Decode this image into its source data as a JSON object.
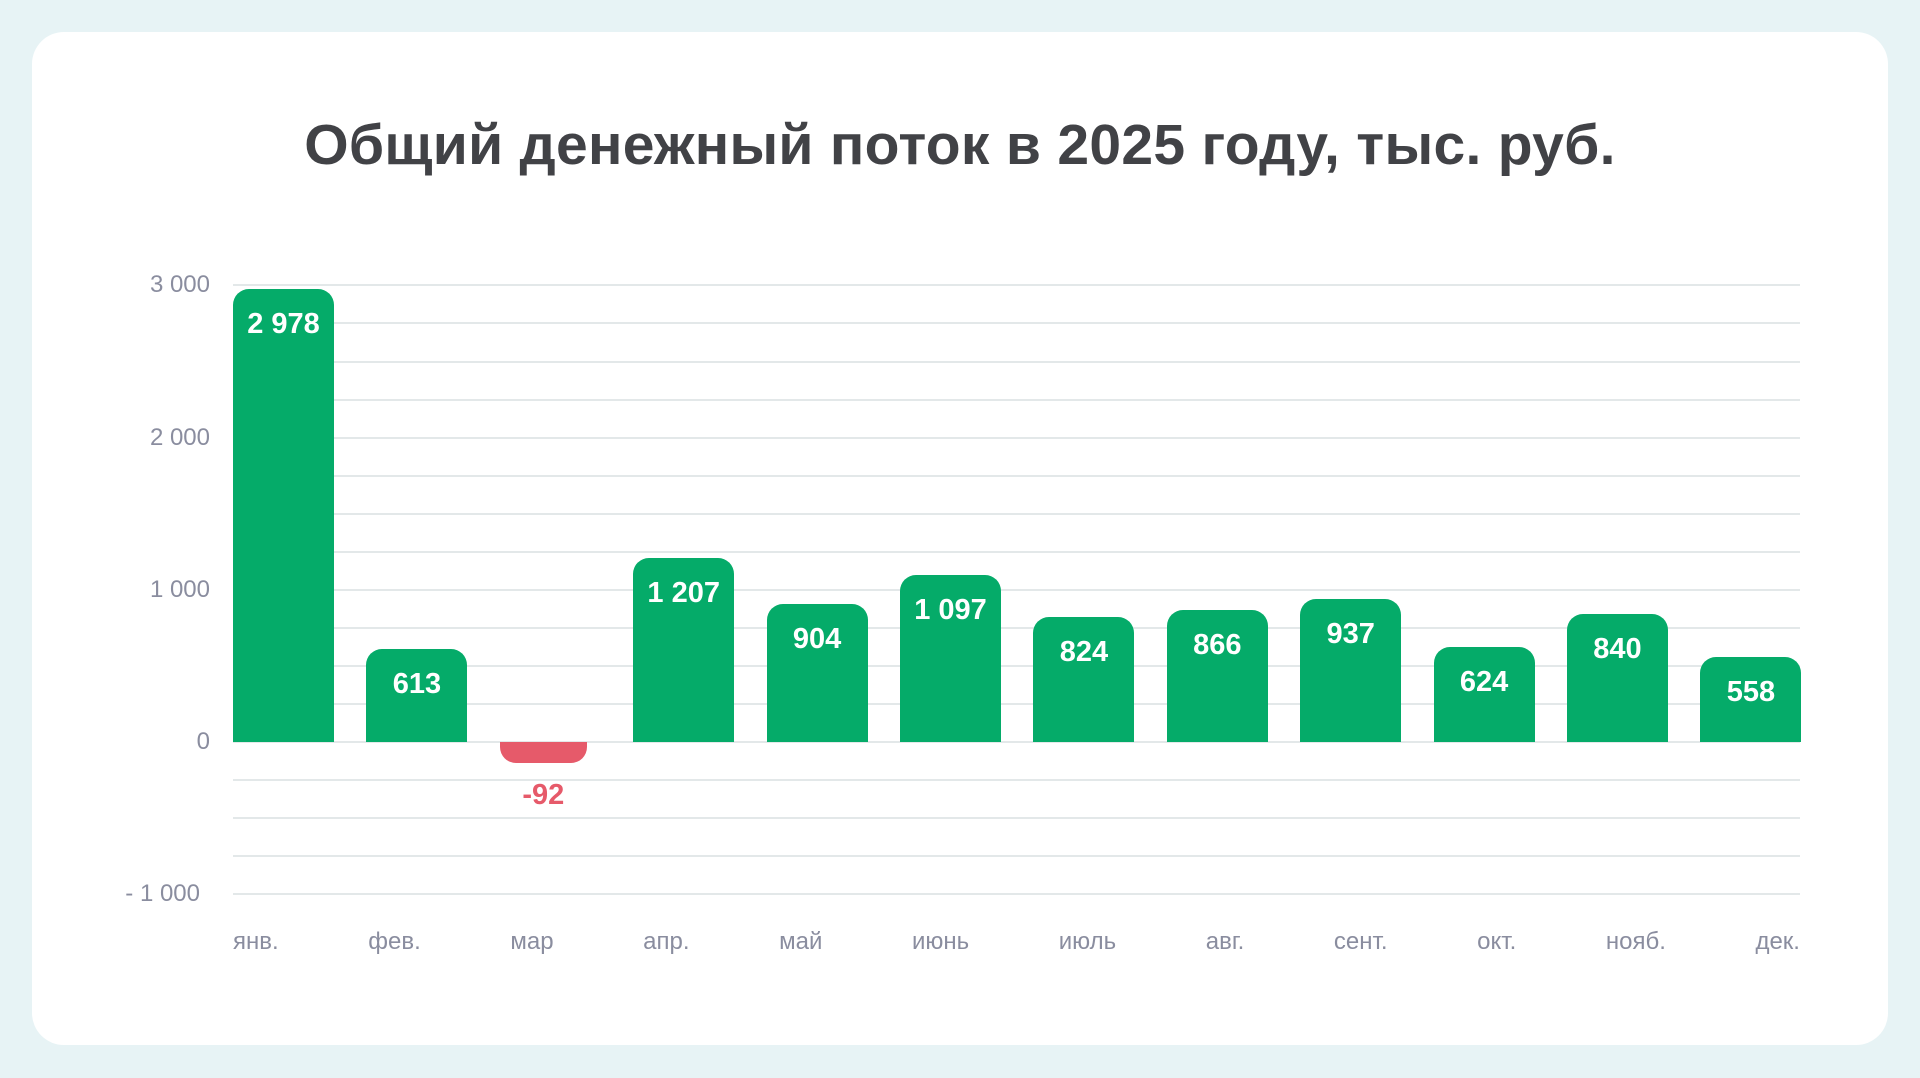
{
  "title": "Общий денежный поток в 2025 году, тыс. руб.",
  "colors": {
    "positive": "#05AB69",
    "negative": "#E65A6A",
    "title": "#414246",
    "axis_text": "#8A8D9F",
    "grid": "#E3E8E9",
    "background": "#E7F3F5",
    "card": "#FFFFFF"
  },
  "y_axis": {
    "ticks": [
      "3 000",
      "2 000",
      "1 000",
      "0",
      "- 1 000"
    ]
  },
  "x_axis": {
    "labels": [
      "янв.",
      "фев.",
      "мар",
      "апр.",
      "май",
      "июнь",
      "июль",
      "авг.",
      "сент.",
      "окт.",
      "нояб.",
      "дек."
    ]
  },
  "bars": [
    {
      "month": "янв.",
      "value": 2978,
      "label": "2 978"
    },
    {
      "month": "фев.",
      "value": 613,
      "label": "613"
    },
    {
      "month": "мар",
      "value": -92,
      "label": "-92"
    },
    {
      "month": "апр.",
      "value": 1207,
      "label": "1 207"
    },
    {
      "month": "май",
      "value": 904,
      "label": "904"
    },
    {
      "month": "июнь",
      "value": 1097,
      "label": "1 097"
    },
    {
      "month": "июль",
      "value": 824,
      "label": "824"
    },
    {
      "month": "авг.",
      "value": 866,
      "label": "866"
    },
    {
      "month": "сент.",
      "value": 937,
      "label": "937"
    },
    {
      "month": "окт.",
      "value": 624,
      "label": "624"
    },
    {
      "month": "нояб.",
      "value": 840,
      "label": "840"
    },
    {
      "month": "дек.",
      "value": 558,
      "label": "558"
    }
  ],
  "chart_data": {
    "type": "bar",
    "title": "Общий денежный поток в 2025 году, тыс. руб.",
    "categories": [
      "янв.",
      "фев.",
      "мар",
      "апр.",
      "май",
      "июнь",
      "июль",
      "авг.",
      "сент.",
      "окт.",
      "нояб.",
      "дек."
    ],
    "values": [
      2978,
      613,
      -92,
      1207,
      904,
      1097,
      824,
      866,
      937,
      624,
      840,
      558
    ],
    "data_labels": [
      "2 978",
      "613",
      "-92",
      "1 207",
      "904",
      "1 097",
      "824",
      "866",
      "937",
      "624",
      "840",
      "558"
    ],
    "xlabel": "",
    "ylabel": "",
    "ylim": [
      -1000,
      3000
    ],
    "yticks": [
      3000,
      2000,
      1000,
      0,
      -1000
    ],
    "ytick_labels": [
      "3 000",
      "2 000",
      "1 000",
      "0",
      "- 1 000"
    ],
    "grid": true,
    "grid_step": 250,
    "legend": null,
    "colors": {
      "positive": "#05AB69",
      "negative": "#E65A6A"
    }
  }
}
